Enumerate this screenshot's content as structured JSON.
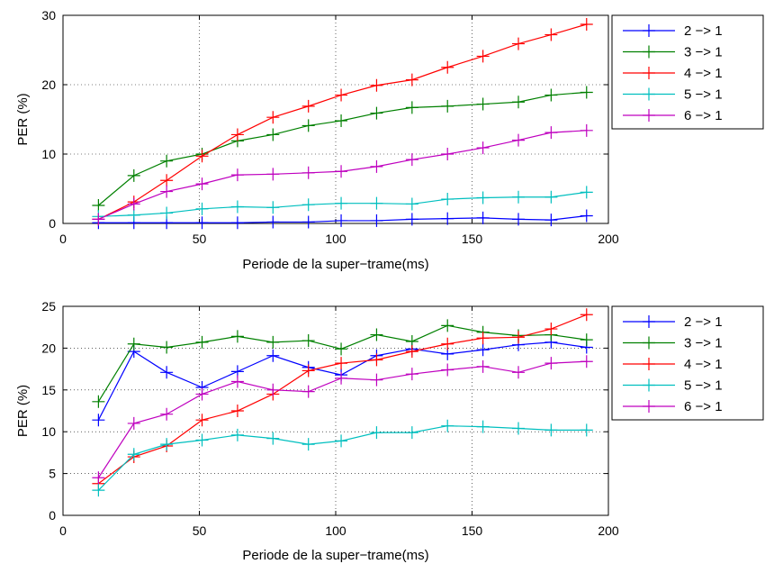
{
  "colors": {
    "2 -> 1": "#0000ff",
    "3 -> 1": "#008000",
    "4 -> 1": "#ff0000",
    "5 -> 1": "#00bfbf",
    "6 -> 1": "#bf00bf"
  },
  "chart_data": [
    {
      "type": "line",
      "xlabel": "Periode de la super−trame(ms)",
      "ylabel": "PER (%)",
      "xlim": [
        0,
        200
      ],
      "ylim": [
        0,
        30
      ],
      "xticks": [
        "0",
        "50",
        "100",
        "150",
        "200"
      ],
      "yticks": [
        "0",
        "10",
        "20",
        "30"
      ],
      "grid": true,
      "legend_position": "right",
      "x": [
        13,
        26,
        38,
        51,
        64,
        77,
        90,
        102,
        115,
        128,
        141,
        154,
        167,
        179,
        192
      ],
      "series": [
        {
          "name": "2 −> 1",
          "color_key": "2 -> 1",
          "values": [
            0.1,
            0.1,
            0.1,
            0.1,
            0.1,
            0.2,
            0.2,
            0.4,
            0.4,
            0.6,
            0.7,
            0.8,
            0.6,
            0.5,
            1.1
          ]
        },
        {
          "name": "3 −> 1",
          "color_key": "3 -> 1",
          "values": [
            2.6,
            6.9,
            9.0,
            10.0,
            11.9,
            12.8,
            14.1,
            14.8,
            15.9,
            16.7,
            16.9,
            17.2,
            17.5,
            18.5,
            18.9
          ]
        },
        {
          "name": "4 −> 1",
          "color_key": "4 -> 1",
          "values": [
            0.6,
            3.1,
            6.2,
            9.7,
            12.8,
            15.3,
            16.9,
            18.5,
            19.9,
            20.7,
            22.5,
            24.1,
            25.9,
            27.2,
            28.7
          ]
        },
        {
          "name": "5 −> 1",
          "color_key": "5 -> 1",
          "values": [
            1.0,
            1.2,
            1.5,
            2.1,
            2.4,
            2.3,
            2.7,
            2.9,
            2.9,
            2.8,
            3.5,
            3.7,
            3.8,
            3.8,
            4.5
          ]
        },
        {
          "name": "6 −> 1",
          "color_key": "6 -> 1",
          "values": [
            0.6,
            2.8,
            4.6,
            5.7,
            7.0,
            7.1,
            7.3,
            7.5,
            8.2,
            9.2,
            10.0,
            10.9,
            12.0,
            13.1,
            13.4
          ]
        }
      ]
    },
    {
      "type": "line",
      "xlabel": "Periode de la super−trame(ms)",
      "ylabel": "PER (%)",
      "xlim": [
        0,
        200
      ],
      "ylim": [
        0,
        25
      ],
      "xticks": [
        "0",
        "50",
        "100",
        "150",
        "200"
      ],
      "yticks": [
        "0",
        "5",
        "10",
        "15",
        "20",
        "25"
      ],
      "grid": true,
      "legend_position": "right",
      "x": [
        13,
        26,
        38,
        51,
        64,
        77,
        90,
        102,
        115,
        128,
        141,
        154,
        167,
        179,
        192
      ],
      "series": [
        {
          "name": "2 −> 1",
          "color_key": "2 -> 1",
          "values": [
            11.4,
            19.6,
            17.1,
            15.3,
            17.2,
            19.1,
            17.7,
            16.8,
            19.1,
            19.9,
            19.3,
            19.8,
            20.4,
            20.7,
            20.1
          ]
        },
        {
          "name": "3 −> 1",
          "color_key": "3 -> 1",
          "values": [
            13.6,
            20.5,
            20.1,
            20.7,
            21.4,
            20.7,
            20.9,
            19.9,
            21.6,
            20.8,
            22.7,
            21.9,
            21.5,
            21.6,
            21.0
          ]
        },
        {
          "name": "4 −> 1",
          "color_key": "4 -> 1",
          "values": [
            3.8,
            7.0,
            8.3,
            11.4,
            12.5,
            14.5,
            17.3,
            18.2,
            18.6,
            19.6,
            20.5,
            21.2,
            21.3,
            22.3,
            24.0
          ]
        },
        {
          "name": "5 −> 1",
          "color_key": "5 -> 1",
          "values": [
            3.0,
            7.3,
            8.5,
            9.0,
            9.6,
            9.2,
            8.5,
            8.9,
            9.9,
            9.9,
            10.7,
            10.6,
            10.4,
            10.2,
            10.2
          ]
        },
        {
          "name": "6 −> 1",
          "color_key": "6 -> 1",
          "values": [
            4.5,
            11.0,
            12.1,
            14.5,
            16.0,
            15.0,
            14.8,
            16.4,
            16.2,
            16.9,
            17.4,
            17.8,
            17.1,
            18.2,
            18.4
          ]
        }
      ]
    }
  ]
}
